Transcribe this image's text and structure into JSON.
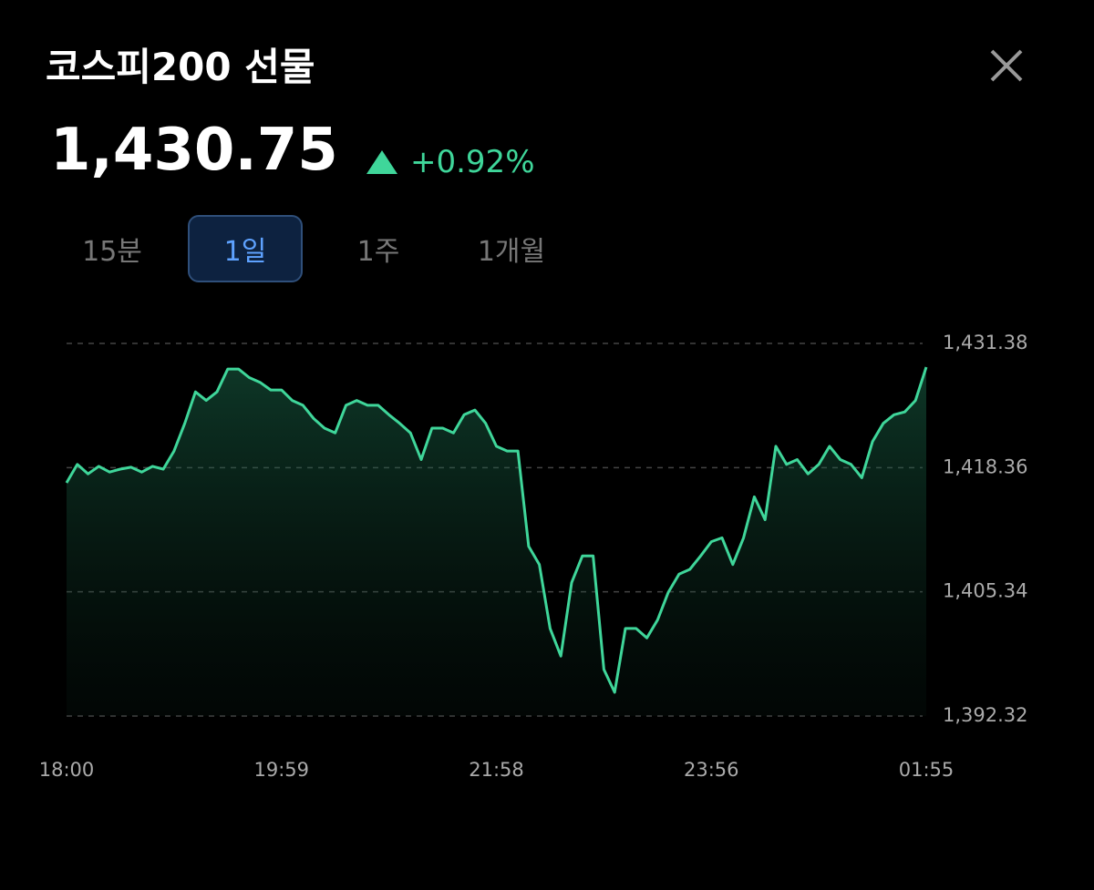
{
  "header": {
    "title": "코스피200 선물",
    "price": "1,430.75",
    "change": "+0.92%"
  },
  "tabs": [
    {
      "label": "15분",
      "selected": false
    },
    {
      "label": "1일",
      "selected": true
    },
    {
      "label": "1주",
      "selected": false
    },
    {
      "label": "1개월",
      "selected": false
    }
  ],
  "chart_data": {
    "type": "line",
    "categories": [
      "18:00",
      null,
      null,
      null,
      null,
      null,
      null,
      null,
      null,
      null,
      null,
      null,
      null,
      null,
      null,
      null,
      null,
      null,
      null,
      null,
      "19:59",
      null,
      null,
      null,
      null,
      null,
      null,
      null,
      null,
      null,
      null,
      null,
      null,
      null,
      null,
      null,
      null,
      null,
      null,
      null,
      "21:58",
      null,
      null,
      null,
      null,
      null,
      null,
      null,
      null,
      null,
      null,
      null,
      null,
      null,
      null,
      null,
      null,
      null,
      null,
      null,
      "23:56",
      null,
      null,
      null,
      null,
      null,
      null,
      null,
      null,
      null,
      null,
      null,
      null,
      null,
      null,
      null,
      null,
      null,
      null,
      null,
      "01:55"
    ],
    "series": [
      {
        "color": "#3fd69a",
        "values": [
          1416.77,
          1418.7,
          1417.7,
          1418.5,
          1417.9,
          1418.2,
          1418.4,
          1417.9,
          1418.5,
          1418.2,
          1420.1,
          1423.0,
          1426.3,
          1425.4,
          1426.3,
          1428.7,
          1428.7,
          1427.8,
          1427.3,
          1426.5,
          1426.5,
          1425.4,
          1424.9,
          1423.5,
          1422.5,
          1422.0,
          1424.9,
          1425.4,
          1424.9,
          1424.9,
          1423.9,
          1423.0,
          1422.0,
          1419.2,
          1422.5,
          1422.5,
          1422.0,
          1423.9,
          1424.4,
          1423.0,
          1420.6,
          1420.1,
          1420.1,
          1410.1,
          1408.2,
          1401.5,
          1398.6,
          1406.3,
          1409.1,
          1409.1,
          1397.2,
          1394.8,
          1401.5,
          1401.5,
          1400.5,
          1402.4,
          1405.3,
          1407.2,
          1407.7,
          1409.1,
          1410.6,
          1411.0,
          1408.2,
          1411.0,
          1415.3,
          1412.9,
          1420.6,
          1418.7,
          1419.2,
          1417.7,
          1418.7,
          1420.6,
          1419.2,
          1418.7,
          1417.3,
          1421.1,
          1423.0,
          1423.9,
          1424.2,
          1425.4,
          1428.9
        ]
      }
    ],
    "ylim": [
      1392.32,
      1431.38
    ],
    "yticks": [
      {
        "value": 1431.38,
        "label": "1,431.38"
      },
      {
        "value": 1418.36,
        "label": "1,418.36"
      },
      {
        "value": 1405.34,
        "label": "1,405.34"
      },
      {
        "value": 1392.32,
        "label": "1,392.32"
      }
    ],
    "grid": true
  }
}
